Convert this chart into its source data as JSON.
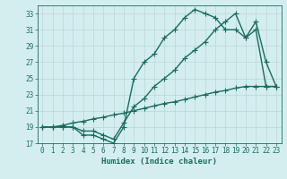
{
  "xlabel": "Humidex (Indice chaleur)",
  "xlim": [
    -0.5,
    23.5
  ],
  "ylim": [
    17,
    34
  ],
  "xticks": [
    0,
    1,
    2,
    3,
    4,
    5,
    6,
    7,
    8,
    9,
    10,
    11,
    12,
    13,
    14,
    15,
    16,
    17,
    18,
    19,
    20,
    21,
    22,
    23
  ],
  "yticks": [
    17,
    19,
    21,
    23,
    25,
    27,
    29,
    31,
    33
  ],
  "background_color": "#d4eef0",
  "grid_color": "#b8d8d0",
  "line_color": "#1a6b5a",
  "line1_x": [
    0,
    1,
    2,
    3,
    4,
    5,
    6,
    7,
    8,
    9,
    10,
    11,
    12,
    13,
    14,
    15,
    16,
    17,
    18,
    19,
    20,
    21,
    22,
    23
  ],
  "line1_y": [
    19,
    19,
    19,
    19,
    18,
    18,
    17.5,
    17,
    19,
    25,
    27,
    28,
    30,
    31,
    32.5,
    33.5,
    33,
    32.5,
    31,
    31,
    30,
    32,
    27,
    24
  ],
  "line2_x": [
    0,
    1,
    2,
    3,
    4,
    5,
    6,
    7,
    8,
    9,
    10,
    11,
    12,
    13,
    14,
    15,
    16,
    17,
    18,
    19,
    20,
    21,
    22,
    23
  ],
  "line2_y": [
    19,
    19,
    19,
    19,
    18.5,
    18.5,
    18,
    17.5,
    19.5,
    21.5,
    22.5,
    24,
    25,
    26,
    27.5,
    28.5,
    29.5,
    31,
    32,
    33,
    30,
    31,
    24,
    24
  ],
  "line3_x": [
    0,
    1,
    2,
    3,
    4,
    5,
    6,
    7,
    8,
    9,
    10,
    11,
    12,
    13,
    14,
    15,
    16,
    17,
    18,
    19,
    20,
    21,
    22,
    23
  ],
  "line3_y": [
    19,
    19,
    19.2,
    19.5,
    19.7,
    20,
    20.2,
    20.5,
    20.7,
    21,
    21.3,
    21.6,
    21.9,
    22.1,
    22.4,
    22.7,
    23,
    23.3,
    23.5,
    23.8,
    24,
    24,
    24,
    24
  ],
  "marker_size": 2.5,
  "line_width": 1.0,
  "fontsize_tick": 5.5,
  "fontsize_label": 6.5
}
